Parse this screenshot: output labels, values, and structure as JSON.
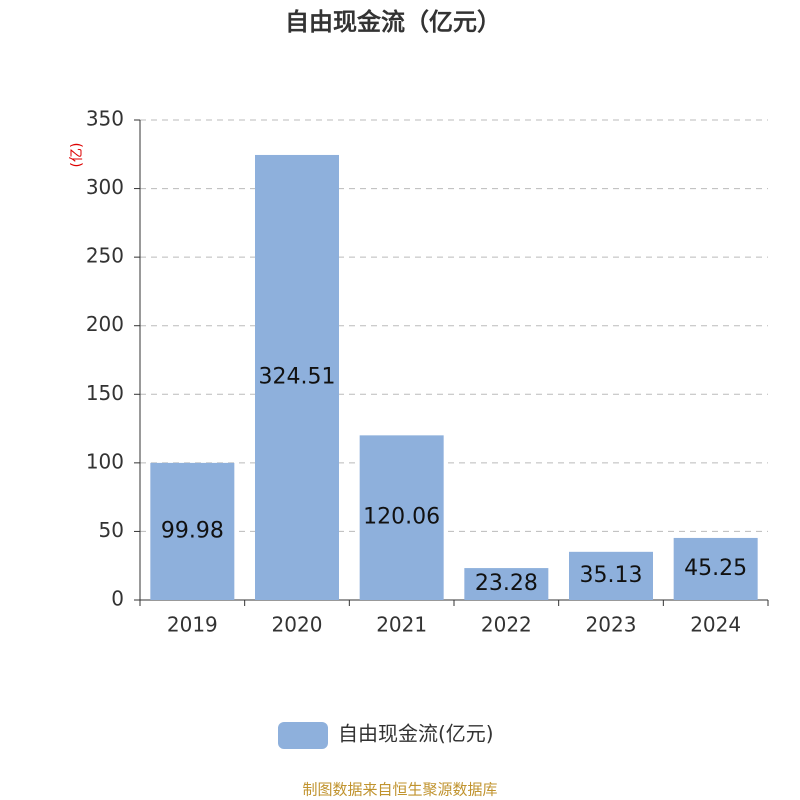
{
  "chart_data": {
    "type": "bar",
    "title": "自由现金流（亿元）",
    "ylabel": "(亿)",
    "categories": [
      "2019",
      "2020",
      "2021",
      "2022",
      "2023",
      "2024"
    ],
    "series": [
      {
        "name": "自由现金流(亿元)",
        "color": "#8eb0dc",
        "values": [
          99.98,
          324.51,
          120.06,
          23.28,
          35.13,
          45.25
        ]
      }
    ],
    "ylim": [
      0,
      350
    ],
    "yticks": [
      0,
      50,
      100,
      150,
      200,
      250,
      300,
      350
    ],
    "grid": true,
    "legend": "bottom",
    "source": "制图数据来自恒生聚源数据库"
  }
}
